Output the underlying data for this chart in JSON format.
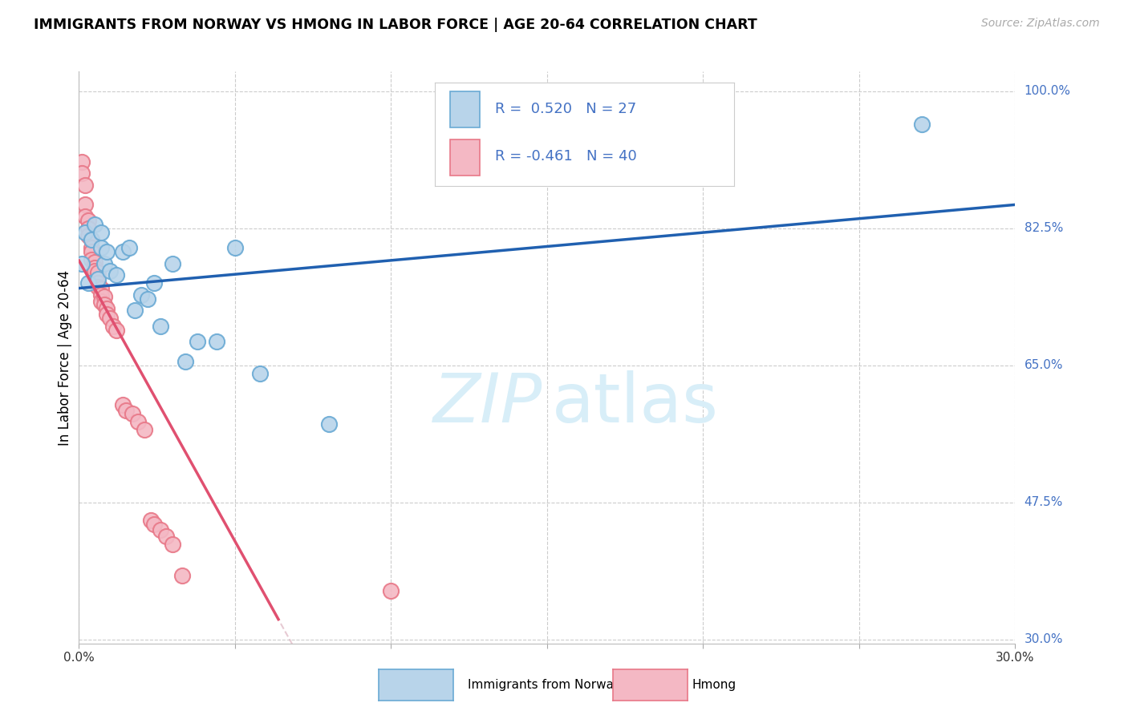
{
  "title": "IMMIGRANTS FROM NORWAY VS HMONG IN LABOR FORCE | AGE 20-64 CORRELATION CHART",
  "source": "Source: ZipAtlas.com",
  "ylabel": "In Labor Force | Age 20-64",
  "xlim": [
    0.0,
    0.3
  ],
  "ylim": [
    0.295,
    1.025
  ],
  "xticks": [
    0.0,
    0.05,
    0.1,
    0.15,
    0.2,
    0.25,
    0.3
  ],
  "xticklabels": [
    "0.0%",
    "",
    "",
    "",
    "",
    "",
    "30.0%"
  ],
  "ytick_positions": [
    0.3,
    0.475,
    0.65,
    0.825,
    1.0
  ],
  "yticklabels": [
    "30.0%",
    "47.5%",
    "65.0%",
    "82.5%",
    "100.0%"
  ],
  "grid_color": "#cccccc",
  "background_color": "#ffffff",
  "norway_fill": "#b8d4ea",
  "norway_edge": "#6aaad4",
  "hmong_fill": "#f4b8c4",
  "hmong_edge": "#e87888",
  "norway_R": 0.52,
  "norway_N": 27,
  "hmong_R": -0.461,
  "hmong_N": 40,
  "norway_line_color": "#2060b0",
  "hmong_line_solid_color": "#e05070",
  "hmong_line_dashed_color": "#d4a0b0",
  "legend_text_color": "#4472c4",
  "watermark_color": "#d8eef8",
  "legend_norway": "Immigrants from Norway",
  "legend_hmong": "Hmong",
  "norway_x": [
    0.001,
    0.002,
    0.003,
    0.004,
    0.005,
    0.006,
    0.007,
    0.007,
    0.008,
    0.009,
    0.01,
    0.012,
    0.014,
    0.016,
    0.018,
    0.02,
    0.022,
    0.024,
    0.026,
    0.03,
    0.034,
    0.038,
    0.044,
    0.05,
    0.058,
    0.08,
    0.27
  ],
  "norway_y": [
    0.78,
    0.82,
    0.755,
    0.81,
    0.83,
    0.76,
    0.8,
    0.82,
    0.78,
    0.795,
    0.77,
    0.765,
    0.795,
    0.8,
    0.72,
    0.74,
    0.735,
    0.755,
    0.7,
    0.78,
    0.655,
    0.68,
    0.68,
    0.8,
    0.64,
    0.575,
    0.958
  ],
  "hmong_x": [
    0.001,
    0.001,
    0.002,
    0.002,
    0.002,
    0.003,
    0.003,
    0.003,
    0.004,
    0.004,
    0.004,
    0.004,
    0.005,
    0.005,
    0.005,
    0.006,
    0.006,
    0.006,
    0.007,
    0.007,
    0.007,
    0.008,
    0.008,
    0.009,
    0.009,
    0.01,
    0.011,
    0.012,
    0.014,
    0.015,
    0.017,
    0.019,
    0.021,
    0.023,
    0.024,
    0.026,
    0.028,
    0.03,
    0.033,
    0.1
  ],
  "hmong_y": [
    0.91,
    0.895,
    0.88,
    0.855,
    0.84,
    0.835,
    0.825,
    0.815,
    0.81,
    0.8,
    0.795,
    0.785,
    0.782,
    0.775,
    0.77,
    0.768,
    0.755,
    0.75,
    0.748,
    0.74,
    0.732,
    0.738,
    0.728,
    0.722,
    0.715,
    0.71,
    0.7,
    0.695,
    0.6,
    0.592,
    0.588,
    0.578,
    0.568,
    0.452,
    0.447,
    0.44,
    0.432,
    0.422,
    0.382,
    0.362
  ]
}
